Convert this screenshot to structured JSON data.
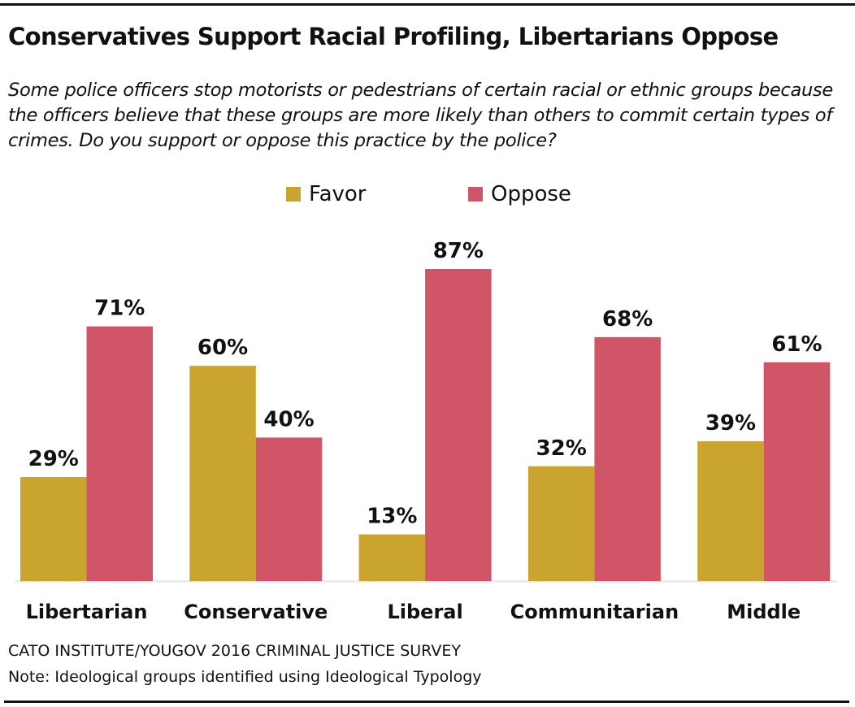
{
  "chart_data": {
    "type": "bar",
    "title": "Conservatives Support Racial Profiling, Libertarians Oppose",
    "subtitle": "Some police officers stop motorists or pedestrians of certain racial or ethnic groups because the officers believe that these groups are more likely than others to commit certain types of crimes. Do you support or oppose this practice by the police?",
    "categories": [
      "Libertarian",
      "Conservative",
      "Liberal",
      "Communitarian",
      "Middle"
    ],
    "series": [
      {
        "name": "Favor",
        "color": "#C9A52F",
        "values": [
          29,
          60,
          13,
          32,
          39
        ],
        "labels": [
          "29%",
          "60%",
          "13%",
          "32%",
          "39%"
        ]
      },
      {
        "name": "Oppose",
        "color": "#D05566",
        "values": [
          71,
          40,
          87,
          68,
          61
        ],
        "labels": [
          "71%",
          "40%",
          "87%",
          "68%",
          "61%"
        ]
      }
    ],
    "ylim": [
      0,
      100
    ],
    "grid": false,
    "legend_placement": "top-center",
    "xlabel": "",
    "ylabel": ""
  },
  "footer": {
    "source": "CATO INSTITUTE/YOUGOV 2016 CRIMINAL JUSTICE SURVEY",
    "note": "Note: Ideological groups identified using Ideological Typology"
  }
}
